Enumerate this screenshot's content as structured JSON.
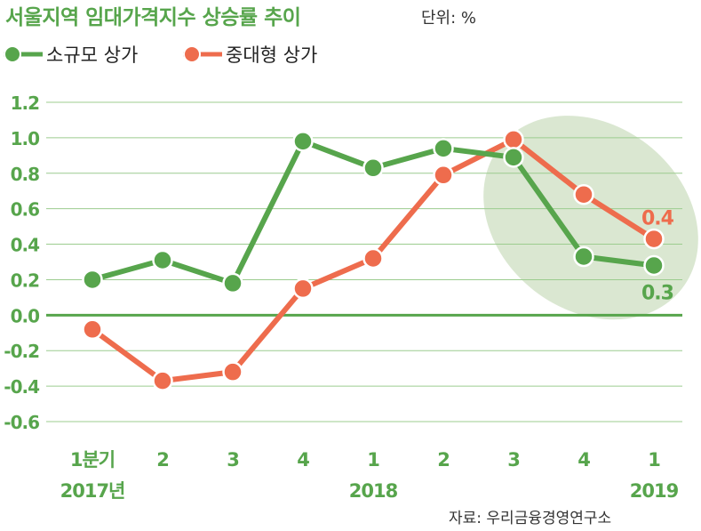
{
  "title": "서울지역 임대가격지수 상승률 추이",
  "unit": "단위: %",
  "source": "자료: 우리금융경영연구소",
  "colors": {
    "small": "#57a54c",
    "mid": "#ee6c4d",
    "highlight": "#d8e6cf",
    "grid": "#9ccc8f",
    "axis_text": "#57a54c"
  },
  "chart_data": {
    "type": "line",
    "title": "서울지역 임대가격지수 상승률 추이",
    "unit": "%",
    "categories": [
      "1분기 2017년",
      "2",
      "3",
      "4",
      "1 2018",
      "2",
      "3",
      "4",
      "1 2019"
    ],
    "x_tick_labels": [
      "1분기",
      "2",
      "3",
      "4",
      "1",
      "2",
      "3",
      "4",
      "1"
    ],
    "x_year_labels": [
      {
        "index": 0,
        "label": "2017년"
      },
      {
        "index": 4,
        "label": "2018"
      },
      {
        "index": 8,
        "label": "2019"
      }
    ],
    "y_ticks": [
      "1.2",
      "1.0",
      "0.8",
      "0.6",
      "0.4",
      "0.2",
      "0.0",
      "-0.2",
      "-0.4",
      "-0.6"
    ],
    "ylim": [
      -0.6,
      1.2
    ],
    "grid": true,
    "legend_position": "top-left",
    "series": [
      {
        "name": "소규모 상가",
        "color": "#57a54c",
        "values": [
          0.2,
          0.31,
          0.18,
          0.98,
          0.83,
          0.94,
          0.89,
          0.33,
          0.28
        ]
      },
      {
        "name": "중대형 상가",
        "color": "#ee6c4d",
        "values": [
          -0.08,
          -0.37,
          -0.32,
          0.15,
          0.32,
          0.79,
          0.99,
          0.68,
          0.43
        ]
      }
    ],
    "annotations": [
      {
        "series": 0,
        "index": 8,
        "text": "0.3",
        "color": "#57a54c"
      },
      {
        "series": 1,
        "index": 8,
        "text": "0.4",
        "color": "#ee6c4d"
      }
    ]
  }
}
